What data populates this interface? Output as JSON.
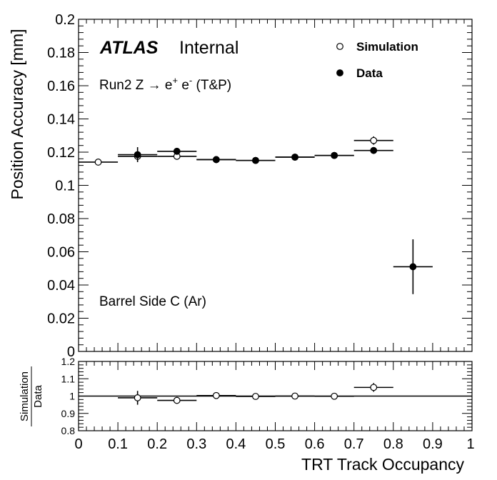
{
  "chart_data": [
    {
      "type": "scatter",
      "panel": "main",
      "ylabel": "Position Accuracy [mm]",
      "xlabel": "TRT Track Occupancy",
      "xlim": [
        0,
        1
      ],
      "ylim": [
        0,
        0.2
      ],
      "xticks": [
        "0",
        "0.1",
        "0.2",
        "0.3",
        "0.4",
        "0.5",
        "0.6",
        "0.7",
        "0.8",
        "0.9",
        "1"
      ],
      "yticks": [
        "0",
        "0.02",
        "0.04",
        "0.06",
        "0.08",
        "0.1",
        "0.12",
        "0.14",
        "0.16",
        "0.18",
        "0.2"
      ],
      "annotations": {
        "atlas": "ATLAS",
        "internal": "Internal",
        "process_pre": "Run2 Z ",
        "arrow": "→",
        "process_post": " e",
        "plus": "+",
        "space": " e",
        "minus": "-",
        "tag": " (T&P)",
        "region": "Barrel Side C (Ar)"
      },
      "legend": {
        "placement": "top-right",
        "entries": [
          "Simulation",
          "Data"
        ]
      },
      "series": [
        {
          "name": "Simulation",
          "marker": "open-circle",
          "points": [
            {
              "x": 0.05,
              "xerr": 0.05,
              "y": 0.114,
              "yerr": 0.0008
            },
            {
              "x": 0.15,
              "xerr": 0.05,
              "y": 0.1175,
              "yerr": 0.001
            },
            {
              "x": 0.25,
              "xerr": 0.05,
              "y": 0.1175,
              "yerr": 0.0008
            },
            {
              "x": 0.35,
              "xerr": 0.05,
              "y": 0.1155,
              "yerr": 0.0005
            },
            {
              "x": 0.45,
              "xerr": 0.05,
              "y": 0.115,
              "yerr": 0.0005
            },
            {
              "x": 0.55,
              "xerr": 0.05,
              "y": 0.117,
              "yerr": 0.0005
            },
            {
              "x": 0.65,
              "xerr": 0.05,
              "y": 0.118,
              "yerr": 0.0008
            },
            {
              "x": 0.75,
              "xerr": 0.05,
              "y": 0.127,
              "yerr": 0.0025
            }
          ]
        },
        {
          "name": "Data",
          "marker": "filled-circle",
          "points": [
            {
              "x": 0.15,
              "xerr": 0.05,
              "y": 0.1185,
              "yerr": 0.0045
            },
            {
              "x": 0.25,
              "xerr": 0.05,
              "y": 0.1205,
              "yerr": 0.001
            },
            {
              "x": 0.35,
              "xerr": 0.05,
              "y": 0.1155,
              "yerr": 0.0005
            },
            {
              "x": 0.45,
              "xerr": 0.05,
              "y": 0.115,
              "yerr": 0.0005
            },
            {
              "x": 0.55,
              "xerr": 0.05,
              "y": 0.117,
              "yerr": 0.0005
            },
            {
              "x": 0.65,
              "xerr": 0.05,
              "y": 0.118,
              "yerr": 0.0005
            },
            {
              "x": 0.75,
              "xerr": 0.05,
              "y": 0.121,
              "yerr": 0.001
            },
            {
              "x": 0.85,
              "xerr": 0.05,
              "y": 0.051,
              "yerr": 0.0165
            }
          ]
        }
      ]
    },
    {
      "type": "scatter",
      "panel": "ratio",
      "ylabel_num": "Simulation",
      "ylabel_den": "Data",
      "xlabel": "TRT Track Occupancy",
      "xlim": [
        0,
        1
      ],
      "ylim": [
        0.8,
        1.2
      ],
      "yticks": [
        "0.8",
        "0.9",
        "1",
        "1.1",
        "1.2"
      ],
      "reference_line": 1,
      "series": [
        {
          "name": "Simulation/Data",
          "marker": "open-circle",
          "points": [
            {
              "x": 0.15,
              "xerr": 0.05,
              "y": 0.99,
              "yerr": 0.04
            },
            {
              "x": 0.25,
              "xerr": 0.05,
              "y": 0.975,
              "yerr": 0.008
            },
            {
              "x": 0.35,
              "xerr": 0.05,
              "y": 1.003,
              "yerr": 0.004
            },
            {
              "x": 0.45,
              "xerr": 0.05,
              "y": 0.998,
              "yerr": 0.004
            },
            {
              "x": 0.55,
              "xerr": 0.05,
              "y": 1.0,
              "yerr": 0.004
            },
            {
              "x": 0.65,
              "xerr": 0.05,
              "y": 0.999,
              "yerr": 0.005
            },
            {
              "x": 0.75,
              "xerr": 0.05,
              "y": 1.05,
              "yerr": 0.025
            }
          ]
        }
      ]
    }
  ]
}
